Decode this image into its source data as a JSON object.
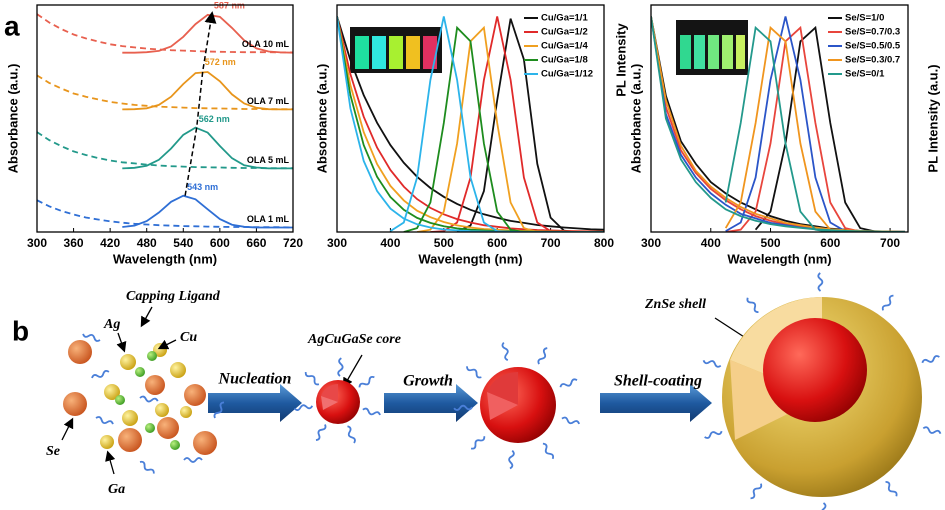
{
  "panel_labels": [
    "a",
    "b"
  ],
  "chart_data": [
    {
      "type": "line",
      "xlabel": "Wavelength (nm)",
      "ylabel": "Absorbance (a.u.)",
      "xlim": [
        300,
        720
      ],
      "xticks": [
        300,
        360,
        420,
        480,
        540,
        600,
        660,
        720
      ],
      "ylim": [
        0,
        100
      ],
      "absorbance_dash": true,
      "x": [
        300,
        320,
        340,
        360,
        380,
        400,
        420,
        440,
        460,
        480,
        500,
        520,
        540,
        560,
        580,
        600,
        620,
        640,
        660,
        680,
        700,
        720
      ],
      "series": [
        {
          "name": "OLA 1 mL",
          "color": "#2f6fd5",
          "peak": {
            "label": "543 nm",
            "x": 543,
            "y": 16
          },
          "values": [
            null,
            null,
            null,
            null,
            null,
            null,
            null,
            2.2,
            2.8,
            4.8,
            8.6,
            13.3,
            16,
            14.4,
            10,
            5.7,
            3.2,
            2.3,
            2,
            2,
            2,
            2
          ],
          "absorbance": [
            14,
            11.3,
            9.3,
            7.7,
            6.4,
            5.5,
            4.7,
            4.1,
            3.6,
            3.3,
            3,
            2.8,
            2.6,
            2.5,
            2.4,
            2.3,
            2.2,
            2.2,
            2.1,
            2.1,
            2.1,
            2.0
          ]
        },
        {
          "name": "OLA 5 mL",
          "color": "#22998a",
          "peak": {
            "label": "562 nm",
            "x": 562,
            "y": 46
          },
          "values": [
            null,
            null,
            null,
            null,
            null,
            null,
            null,
            28,
            28.3,
            29.2,
            31.8,
            36.8,
            42.8,
            46,
            43.8,
            37.9,
            32.5,
            29.4,
            28.4,
            28,
            28,
            28
          ],
          "absorbance": [
            44,
            40.5,
            37.8,
            35.5,
            33.9,
            32.6,
            31.5,
            30.7,
            30.2,
            29.7,
            29.3,
            29,
            28.8,
            28.6,
            28.5,
            28.4,
            28.3,
            28.2,
            28.2,
            28.1,
            28.1,
            28.1
          ]
        },
        {
          "name": "OLA 7 mL",
          "color": "#e8951c",
          "peak": {
            "label": "572 nm",
            "x": 572,
            "y": 71
          },
          "values": [
            null,
            null,
            null,
            null,
            null,
            null,
            null,
            54,
            54.1,
            54.5,
            56,
            59.6,
            65.2,
            70,
            70.5,
            66.4,
            60.6,
            56.6,
            54.7,
            54.1,
            54,
            54
          ],
          "absorbance": [
            69,
            65.7,
            63.2,
            61,
            59.6,
            58.4,
            57.3,
            56.6,
            56,
            55.6,
            55.2,
            55,
            54.8,
            54.6,
            54.5,
            54.4,
            54.3,
            54.2,
            54.2,
            54.1,
            54.1,
            54.1
          ]
        },
        {
          "name": "OLA 10 mL",
          "color": "#e8604f",
          "peak": {
            "label": "587 nm",
            "x": 587,
            "y": 96
          },
          "values": [
            null,
            null,
            null,
            null,
            null,
            null,
            null,
            79,
            79,
            79.2,
            79.8,
            81.7,
            86,
            91.6,
            95.7,
            94.8,
            89.9,
            84.4,
            80.9,
            79.5,
            79.1,
            79
          ],
          "absorbance": [
            96,
            92.3,
            89.4,
            87,
            85.3,
            83.9,
            82.7,
            81.9,
            81.3,
            80.8,
            80.4,
            80.1,
            79.9,
            79.7,
            79.5,
            79.4,
            79.3,
            79.2,
            79.2,
            79.2,
            79.1,
            79.1
          ]
        }
      ]
    },
    {
      "type": "line",
      "xlabel": "Wavelength (nm)",
      "ylabel": "Absorbance (a.u.)",
      "legend": "upper right",
      "xlim": [
        300,
        800
      ],
      "xticks": [
        300,
        400,
        500,
        600,
        700,
        800
      ],
      "ylim": [
        0,
        100
      ],
      "x": [
        300,
        325,
        350,
        375,
        400,
        425,
        450,
        475,
        500,
        525,
        550,
        575,
        600,
        625,
        650,
        675,
        700,
        725,
        750,
        775,
        800
      ],
      "series": [
        {
          "name": "Cu/Ga=1/1",
          "color": "#111111",
          "values": [
            null,
            null,
            null,
            null,
            null,
            null,
            null,
            null,
            null,
            0.2,
            2.8,
            18,
            58,
            94,
            76,
            30,
            6.3,
            0.6,
            0,
            null,
            null
          ],
          "absorbance": [
            95,
            75.7,
            60.3,
            48.1,
            38.3,
            30.5,
            24.3,
            19.4,
            15.5,
            12.4,
            9.8,
            7.8,
            6.3,
            4.9,
            4,
            3.1,
            2.5,
            2,
            1.6,
            1.2,
            1
          ]
        },
        {
          "name": "Cu/Ga=1/2",
          "color": "#e02a2a",
          "values": [
            null,
            null,
            null,
            null,
            null,
            null,
            null,
            0,
            0.4,
            4.2,
            24,
            67,
            95,
            67,
            24,
            4.2,
            0.4,
            0,
            null,
            null,
            null
          ],
          "absorbance": [
            95,
            69.5,
            50.8,
            37.2,
            27.3,
            20,
            14.5,
            10.6,
            7.8,
            5.7,
            4.2,
            3,
            2.3,
            1.6,
            1.2,
            0.9,
            0.7,
            0.5,
            0.4,
            0.3,
            0.2
          ]
        },
        {
          "name": "Cu/Ga=1/4",
          "color": "#f0a020",
          "values": [
            null,
            null,
            null,
            null,
            null,
            null,
            0,
            1,
            9,
            39,
            84,
            90,
            48,
            13,
            1.7,
            0,
            null,
            null,
            null,
            null,
            null
          ],
          "absorbance": [
            95,
            64.7,
            44,
            29.9,
            20.3,
            13.9,
            9.4,
            6.5,
            4.4,
            2.9,
            2,
            1.3,
            1,
            0.7,
            0.5,
            0.3,
            0.2,
            0.1,
            0.1,
            0.1,
            0.1
          ]
        },
        {
          "name": "Cu/Ga=1/8",
          "color": "#1e8c1e",
          "values": [
            null,
            null,
            null,
            null,
            null,
            0,
            1.7,
            13,
            48,
            90,
            84,
            39,
            9,
            1,
            0,
            null,
            null,
            null,
            null,
            null,
            null
          ],
          "absorbance": [
            95,
            60.3,
            38.3,
            24.3,
            15.4,
            9.8,
            6.2,
            4,
            2.5,
            1.6,
            1,
            0.7,
            0.4,
            0.3,
            0.2,
            0.1,
            0.1,
            0.1,
            0,
            0,
            0
          ]
        },
        {
          "name": "Cu/Ga=1/12",
          "color": "#2cb4ea",
          "values": [
            null,
            null,
            null,
            null,
            0.4,
            4.2,
            24,
            67,
            95,
            67,
            24,
            4.2,
            0.4,
            0,
            null,
            null,
            null,
            null,
            null,
            null,
            null
          ],
          "absorbance": [
            95,
            54.5,
            31.3,
            18,
            10.3,
            5.9,
            3.4,
            2,
            1.1,
            0.7,
            0.4,
            0.2,
            0.1,
            0.1,
            0,
            0,
            0,
            0,
            0,
            0,
            0
          ]
        }
      ]
    },
    {
      "type": "line",
      "xlabel": "Wavelength (nm)",
      "ylabel": "Absorbance (a.u.)",
      "ylabel_extra": "PL Intensity",
      "ylabel2": "PL Intensity (a.u.)",
      "legend": "upper right",
      "xlim": [
        300,
        730
      ],
      "xticks": [
        300,
        400,
        500,
        600,
        700
      ],
      "ylim": [
        0,
        100
      ],
      "x": [
        300,
        325,
        350,
        375,
        400,
        425,
        450,
        475,
        500,
        525,
        550,
        575,
        600,
        625,
        650,
        675,
        700,
        725
      ],
      "series": [
        {
          "name": "Se/S=1/0",
          "color": "#111111",
          "values": [
            null,
            null,
            null,
            null,
            null,
            null,
            null,
            1,
            9,
            39,
            84,
            90,
            48,
            13,
            1.7,
            0.2,
            0,
            0
          ],
          "absorbance": [
            95,
            60,
            40,
            30,
            22,
            17,
            13,
            10,
            7,
            5,
            3.5,
            2.5,
            1.5,
            1,
            0.5,
            0.3,
            0.2,
            0.1
          ]
        },
        {
          "name": "Se/S=0.7/0.3",
          "color": "#e8453c",
          "values": [
            null,
            null,
            null,
            null,
            null,
            0,
            1,
            9,
            39,
            84,
            90,
            48,
            13,
            1.7,
            0.2,
            0,
            0,
            0
          ],
          "absorbance": [
            95,
            55,
            36,
            26,
            19,
            14,
            10,
            7,
            5,
            3.5,
            2.5,
            1.5,
            1,
            0.6,
            0.3,
            0.2,
            0.1,
            0.1
          ]
        },
        {
          "name": "Se/S=0.5/0.5",
          "color": "#2b55c8",
          "values": [
            null,
            null,
            null,
            null,
            null,
            0.4,
            4.2,
            24,
            67,
            95,
            67,
            24,
            4.2,
            0.4,
            0,
            0,
            0,
            0
          ],
          "absorbance": [
            95,
            52,
            34,
            24,
            17,
            12,
            8,
            6,
            4,
            3,
            2,
            1.3,
            0.8,
            0.5,
            0.3,
            0.2,
            0.1,
            0.1
          ]
        },
        {
          "name": "Se/S=0.3/0.7",
          "color": "#f0951e",
          "values": [
            null,
            null,
            null,
            null,
            null,
            1.7,
            13,
            48,
            90,
            84,
            39,
            9,
            1,
            0,
            0,
            0,
            0,
            0
          ],
          "absorbance": [
            95,
            58,
            38,
            27,
            20,
            15,
            11,
            8,
            6,
            4,
            3,
            2,
            1.2,
            0.8,
            0.5,
            0.3,
            0.2,
            0.1
          ]
        },
        {
          "name": "Se/S=0/1",
          "color": "#23998c",
          "values": [
            null,
            null,
            null,
            null,
            null,
            13,
            48,
            90,
            84,
            39,
            9,
            1,
            0,
            0,
            0,
            0,
            0,
            0
          ],
          "absorbance": [
            95,
            50,
            32,
            22,
            15,
            10,
            7,
            5,
            3.5,
            2.5,
            1.8,
            1.2,
            0.8,
            0.5,
            0.3,
            0.2,
            0.1,
            0.1
          ]
        }
      ]
    }
  ],
  "diagram": {
    "capping_ligand": "Capping Ligand",
    "ag": "Ag",
    "cu": "Cu",
    "se": "Se",
    "ga": "Ga",
    "nucleation": "Nucleation",
    "core": "AgCuGaSe core",
    "growth": "Growth",
    "shell_coating": "Shell-coating",
    "shell": "ZnSe shell"
  }
}
